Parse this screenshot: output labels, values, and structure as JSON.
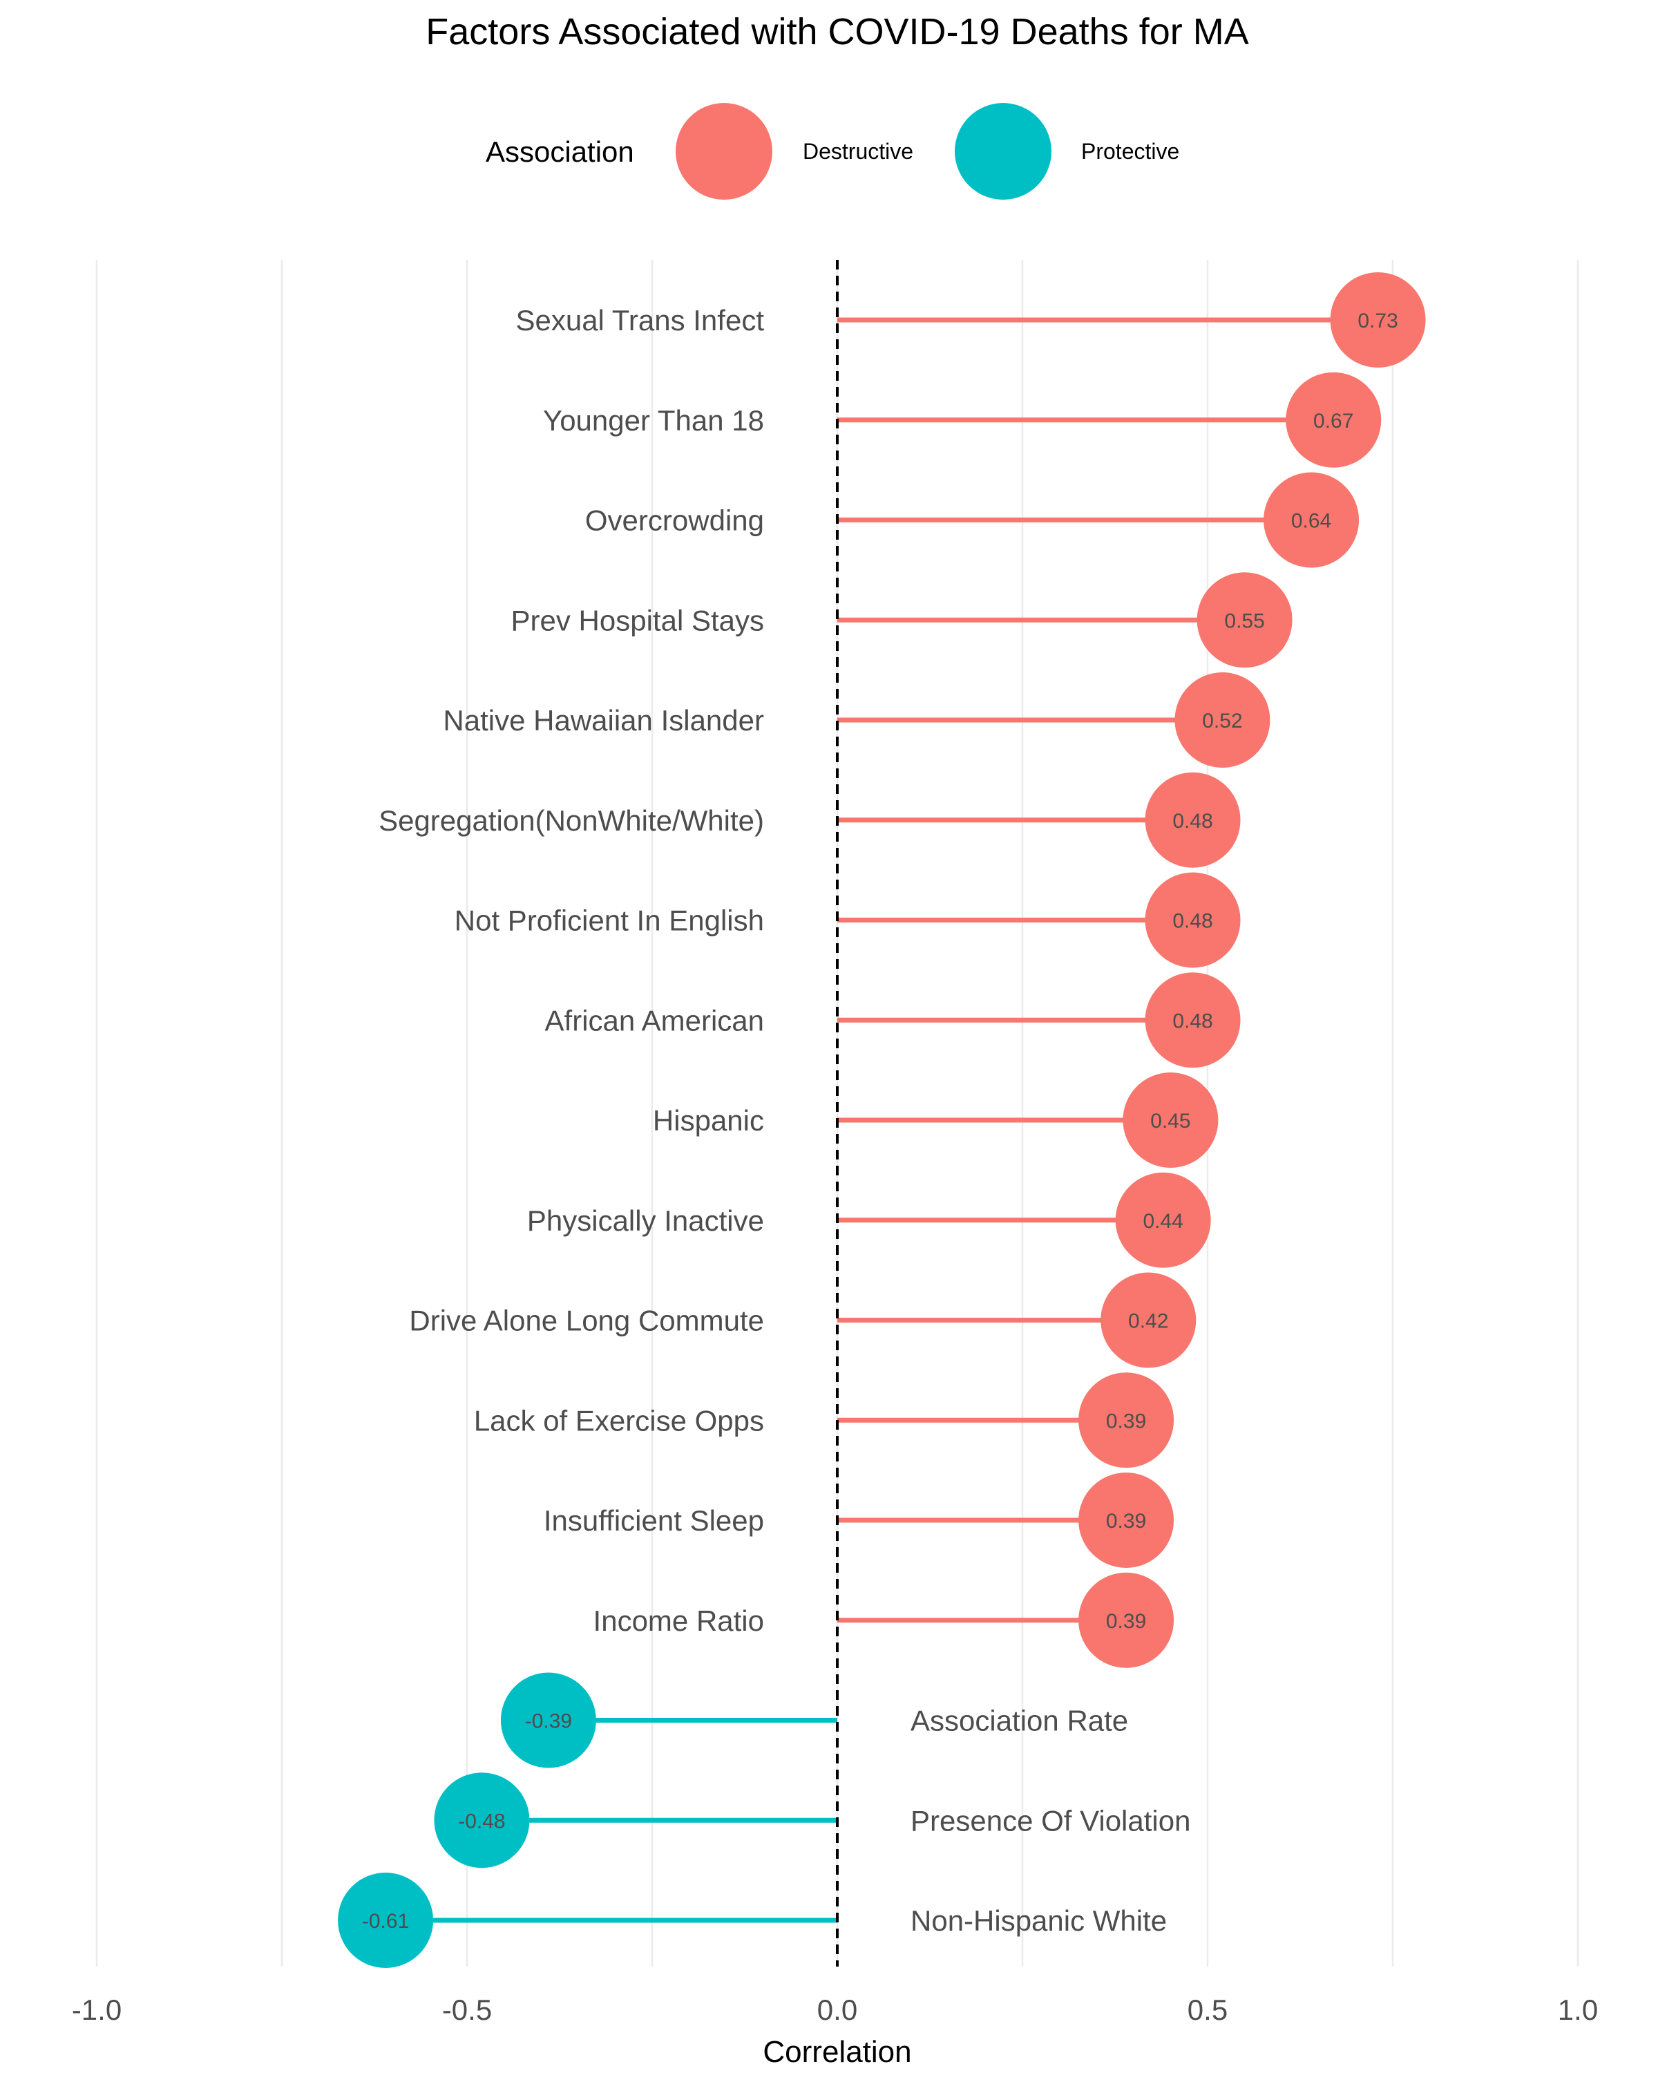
{
  "chart_data": {
    "type": "lollipop",
    "title": "Factors Associated with COVID-19 Deaths for MA",
    "xlabel": "Correlation",
    "ylabel": "",
    "xlim": [
      -1.0,
      1.0
    ],
    "x_ticks": [
      "-1.0",
      "-0.5",
      "0.0",
      "0.5",
      "1.0"
    ],
    "grid": "vertical",
    "reference_line": {
      "x": 0,
      "style": "dashed"
    },
    "legend": {
      "title": "Association",
      "placement": "top",
      "entries": [
        {
          "label": "Destructive",
          "color": "#F8766D"
        },
        {
          "label": "Protective",
          "color": "#00BFC4"
        }
      ]
    },
    "categories": [
      "Sexual Trans Infect",
      "Younger Than 18",
      "Overcrowding",
      "Prev Hospital Stays",
      "Native Hawaiian Islander",
      "Segregation(NonWhite/White)",
      "Not Proficient In English",
      "African American",
      "Hispanic",
      "Physically Inactive",
      "Drive Alone Long Commute",
      "Lack of Exercise Opps",
      "Insufficient Sleep",
      "Income Ratio",
      "Association Rate",
      "Presence Of Violation",
      "Non-Hispanic White"
    ],
    "values": [
      0.73,
      0.67,
      0.64,
      0.55,
      0.52,
      0.48,
      0.48,
      0.48,
      0.45,
      0.44,
      0.42,
      0.39,
      0.39,
      0.39,
      -0.39,
      -0.48,
      -0.61
    ],
    "value_labels": [
      "0.73",
      "0.67",
      "0.64",
      "0.55",
      "0.52",
      "0.48",
      "0.48",
      "0.48",
      "0.45",
      "0.44",
      "0.42",
      "0.39",
      "0.39",
      "0.39",
      "-0.39",
      "-0.48",
      "-0.61"
    ],
    "groups": [
      "Destructive",
      "Destructive",
      "Destructive",
      "Destructive",
      "Destructive",
      "Destructive",
      "Destructive",
      "Destructive",
      "Destructive",
      "Destructive",
      "Destructive",
      "Destructive",
      "Destructive",
      "Destructive",
      "Protective",
      "Protective",
      "Protective"
    ]
  }
}
